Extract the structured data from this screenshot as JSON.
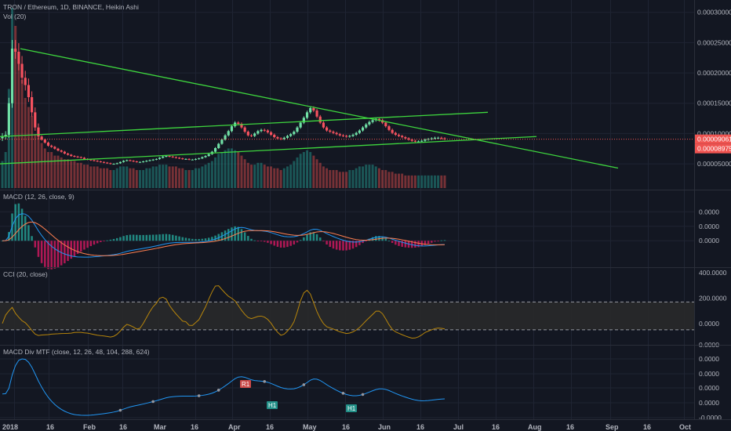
{
  "chart_data": {
    "type": "line",
    "title": "TRON / Ethereum, 1D, BINANCE, Heikin Ashi",
    "x_ticks": [
      "2018",
      "16",
      "Feb",
      "16",
      "Mar",
      "16",
      "Apr",
      "16",
      "May",
      "16",
      "Jun",
      "16",
      "Jul",
      "16",
      "Aug",
      "16",
      "Sep",
      "16",
      "Oct"
    ],
    "colors": {
      "background": "#131722",
      "grid": "#1f2433",
      "up": "#26a69a",
      "up_bright": "#70e0a6",
      "down": "#ef5350",
      "down_bright": "#f7525f",
      "trendline": "#3ed63e",
      "price_line": "#ef5350",
      "macd": "#2196f3",
      "signal": "#ff7f50",
      "cci": "#b8860b"
    },
    "panes": [
      {
        "id": "price",
        "title": "TRON / Ethereum, 1D, BINANCE, Heikin Ashi",
        "subtitle": "Vol (20)",
        "y_ticks": [
          "0.00030000",
          "0.00025000",
          "0.00020000",
          "0.00015000",
          "0.00010000",
          "0.00005000"
        ],
        "ylim": [
          1e-05,
          0.00031
        ],
        "price_tags": [
          {
            "label": "0.00009061",
            "value": 9.061e-05,
            "color": "#ef5350"
          },
          {
            "label": "0.00008975",
            "value": 8.975e-05,
            "color": "#ef5350"
          }
        ],
        "close": [
          9.5e-05,
          9.8e-05,
          0.00015,
          0.00024,
          0.000235,
          0.000215,
          0.000192,
          0.00018,
          0.00016,
          0.000135,
          0.00011,
          9.5e-05,
          9e-05,
          8.5e-05,
          8e-05,
          7.8e-05,
          7.5e-05,
          7.2e-05,
          7e-05,
          6.7e-05,
          6.5e-05,
          6.3e-05,
          6.2e-05,
          6.1e-05,
          6e-05,
          5.8e-05,
          5.7e-05,
          5.6e-05,
          5.5e-05,
          5.4e-05,
          5.3e-05,
          5.2e-05,
          5.1e-05,
          5e-05,
          5e-05,
          5.1e-05,
          5.3e-05,
          5.5e-05,
          5.6e-05,
          5.5e-05,
          5.4e-05,
          5.3e-05,
          5.3e-05,
          5.4e-05,
          5.5e-05,
          5.6e-05,
          5.7e-05,
          5.8e-05,
          6e-05,
          6.2e-05,
          6.3e-05,
          6.2e-05,
          6.1e-05,
          6e-05,
          5.9e-05,
          5.8e-05,
          5.8e-05,
          5.7e-05,
          5.7e-05,
          5.8e-05,
          5.9e-05,
          6.1e-05,
          6.3e-05,
          6.6e-05,
          7e-05,
          7.6e-05,
          8.3e-05,
          9e-05,
          9.7e-05,
          0.000104,
          0.000112,
          0.000118,
          0.000116,
          0.00011,
          0.000103,
          9.7e-05,
          9.6e-05,
          0.0001,
          0.000104,
          0.000106,
          0.000105,
          0.000102,
          9.8e-05,
          9.4e-05,
          9.2e-05,
          9.1e-05,
          9.3e-05,
          9.6e-05,
          9.9e-05,
          0.000103,
          0.00011,
          0.000118,
          0.000126,
          0.000135,
          0.000142,
          0.000138,
          0.000128,
          0.000118,
          0.00011,
          0.000105,
          0.000103,
          0.000101,
          9.9e-05,
          9.7e-05,
          9.6e-05,
          9.5e-05,
          9.6e-05,
          9.8e-05,
          0.000101,
          0.000105,
          0.00011,
          0.000115,
          0.000119,
          0.000122,
          0.000124,
          0.000122,
          0.000118,
          0.000112,
          0.000106,
          0.000101,
          9.8e-05,
          9.6e-05,
          9.4e-05,
          9.2e-05,
          9e-05,
          8.8e-05,
          8.7e-05,
          8.7e-05,
          8.8e-05,
          9e-05,
          9.1e-05,
          9.2e-05,
          9.3e-05,
          9.3e-05,
          9.2e-05,
          9.1e-05
        ],
        "volume": [
          0.15,
          0.2,
          0.55,
          1.0,
          0.9,
          0.7,
          0.6,
          0.5,
          0.45,
          0.4,
          0.3,
          0.28,
          0.25,
          0.22,
          0.2,
          0.2,
          0.18,
          0.18,
          0.17,
          0.16,
          0.16,
          0.15,
          0.15,
          0.14,
          0.14,
          0.13,
          0.13,
          0.12,
          0.12,
          0.12,
          0.11,
          0.11,
          0.11,
          0.1,
          0.1,
          0.11,
          0.12,
          0.12,
          0.12,
          0.11,
          0.11,
          0.1,
          0.1,
          0.1,
          0.11,
          0.11,
          0.12,
          0.12,
          0.13,
          0.13,
          0.13,
          0.12,
          0.12,
          0.12,
          0.11,
          0.11,
          0.1,
          0.1,
          0.1,
          0.11,
          0.11,
          0.12,
          0.13,
          0.14,
          0.15,
          0.17,
          0.19,
          0.2,
          0.21,
          0.22,
          0.22,
          0.21,
          0.2,
          0.18,
          0.16,
          0.14,
          0.13,
          0.13,
          0.14,
          0.14,
          0.13,
          0.12,
          0.12,
          0.11,
          0.11,
          0.1,
          0.11,
          0.12,
          0.13,
          0.15,
          0.17,
          0.19,
          0.2,
          0.21,
          0.2,
          0.18,
          0.16,
          0.14,
          0.12,
          0.11,
          0.1,
          0.1,
          0.1,
          0.09,
          0.09,
          0.09,
          0.1,
          0.1,
          0.11,
          0.12,
          0.12,
          0.13,
          0.13,
          0.13,
          0.12,
          0.11,
          0.1,
          0.1,
          0.09,
          0.09,
          0.08,
          0.08,
          0.08,
          0.07,
          0.07,
          0.07,
          0.07,
          0.07,
          0.07,
          0.07,
          0.07,
          0.07,
          0.07,
          0.07,
          0.07,
          0.07
        ]
      },
      {
        "id": "macd",
        "title": "MACD (12, 26, close, 9)",
        "y_ticks": [
          "0.0000",
          "0.0000",
          "0.0000"
        ],
        "ylim": [
          -2.5e-05,
          4e-05
        ]
      },
      {
        "id": "cci",
        "title": "CCI (20, close)",
        "y_ticks": [
          "400.0000",
          "200.0000",
          "0.0000"
        ],
        "ylim": [
          -150,
          420
        ],
        "band": [
          -50,
          170
        ]
      },
      {
        "id": "macd_div",
        "title": "MACD Div MTF (close, 12, 26, 48, 104, 288, 624)",
        "y_ticks": [
          "0.0000",
          "0.0000",
          "0.0000",
          "0.0000",
          "0.0000",
          "-0.0000"
        ],
        "annotations": [
          {
            "label": "R1",
            "color": "#ef5350"
          },
          {
            "label": "H1",
            "color": "#26a69a"
          },
          {
            "label": "H1",
            "color": "#26a69a"
          }
        ]
      }
    ]
  }
}
